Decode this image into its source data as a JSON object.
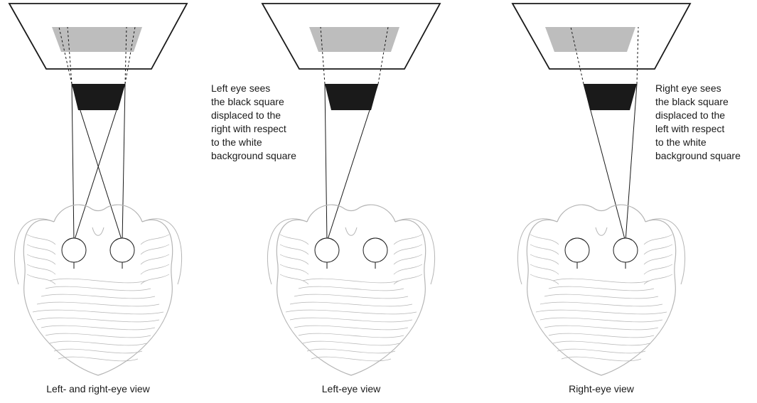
{
  "panels": [
    {
      "caption": "Left- and right-eye view",
      "annotation": [],
      "sightlines": "both"
    },
    {
      "caption": "Left-eye view",
      "annotation": [
        "Left eye sees",
        "the black square",
        "displaced to the",
        "right with respect",
        "to the white",
        "background square"
      ],
      "sightlines": "left"
    },
    {
      "caption": "Right-eye view",
      "annotation": [
        "Right eye sees",
        "the black square",
        "displaced to the",
        "left with respect",
        "to the white",
        "background square"
      ],
      "sightlines": "right"
    }
  ],
  "colors": {
    "black_square": "#1a1a1a",
    "gray_projection": "#bdbdbd",
    "head_outline": "#b5b5b5",
    "line": "#1a1a1a"
  }
}
